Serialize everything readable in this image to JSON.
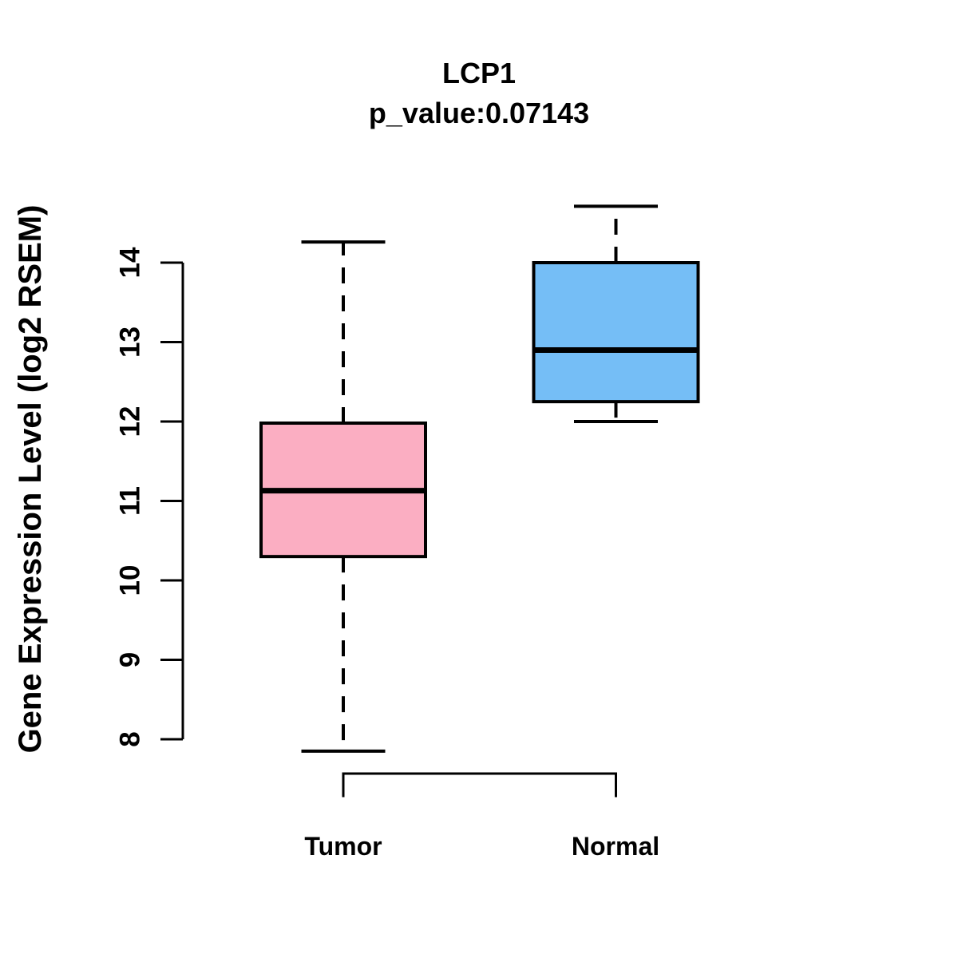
{
  "header": {
    "title_line1": "LCP1",
    "title_line2": "p_value:0.07143"
  },
  "chart_data": {
    "type": "boxplot",
    "title": "LCP1",
    "subtitle": "p_value:0.07143",
    "p_value": 0.07143,
    "gene": "LCP1",
    "ylabel": "Gene Expression Level (log2 RSEM)",
    "xlabel": "",
    "ylim": [
      8,
      14
    ],
    "yticks": [
      8,
      9,
      10,
      11,
      12,
      13,
      14
    ],
    "grid": false,
    "legend": "none",
    "axis_color": "#000000",
    "groups": [
      {
        "name": "Tumor",
        "color": "#FBAEC2",
        "whisker_low": 7.85,
        "q1": 10.3,
        "median": 11.13,
        "q3": 11.98,
        "whisker_high": 14.26
      },
      {
        "name": "Normal",
        "color": "#75BEF6",
        "whisker_low": 12.0,
        "q1": 12.25,
        "median": 12.9,
        "q3": 14.0,
        "whisker_high": 14.71
      }
    ]
  }
}
